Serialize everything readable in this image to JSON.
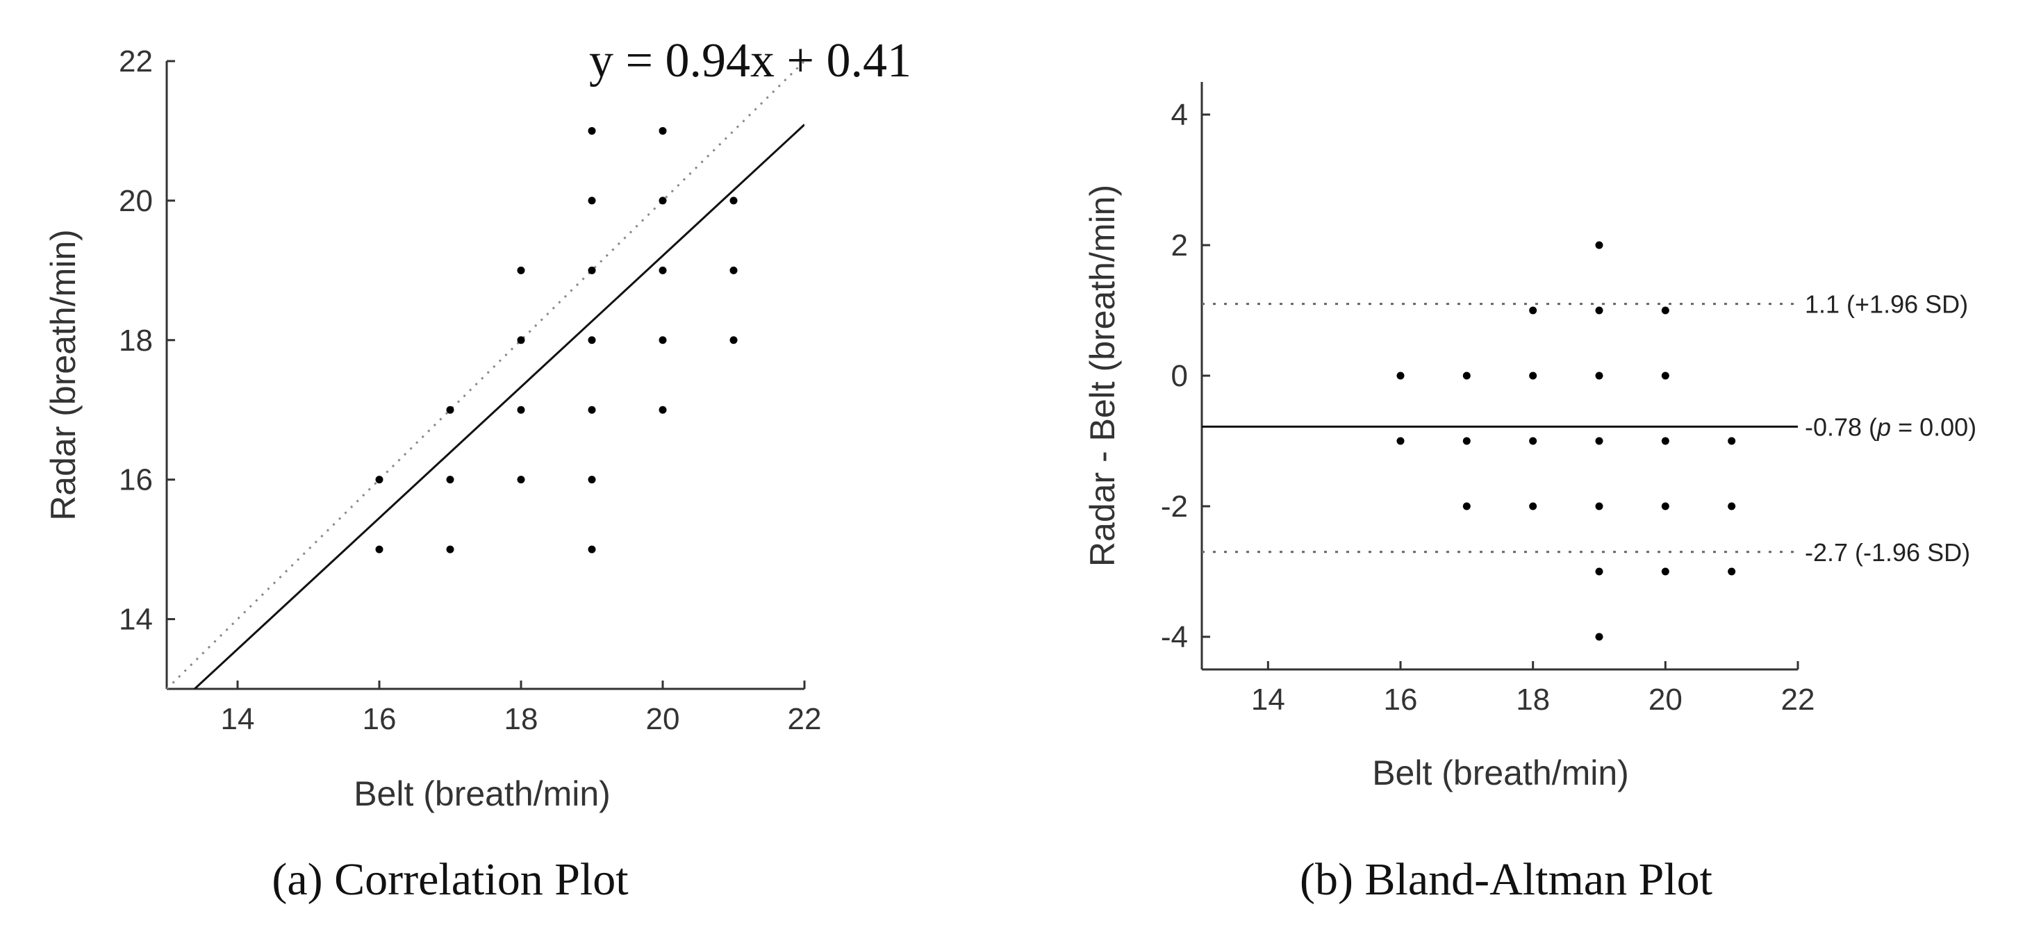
{
  "chart_data": [
    {
      "type": "scatter",
      "caption": "(a) Correlation Plot",
      "xlabel": "Belt (breath/min)",
      "ylabel": "Radar (breath/min)",
      "xlim": [
        13,
        22
      ],
      "ylim": [
        13,
        22
      ],
      "xticks": [
        "14",
        "16",
        "18",
        "20",
        "22"
      ],
      "yticks": [
        "14",
        "16",
        "18",
        "20",
        "22"
      ],
      "points": [
        [
          16,
          15
        ],
        [
          16,
          16
        ],
        [
          17,
          15
        ],
        [
          17,
          16
        ],
        [
          17,
          17
        ],
        [
          18,
          16
        ],
        [
          18,
          17
        ],
        [
          18,
          18
        ],
        [
          18,
          19
        ],
        [
          19,
          15
        ],
        [
          19,
          16
        ],
        [
          19,
          17
        ],
        [
          19,
          18
        ],
        [
          19,
          19
        ],
        [
          19,
          20
        ],
        [
          19,
          21
        ],
        [
          20,
          17
        ],
        [
          20,
          18
        ],
        [
          20,
          19
        ],
        [
          20,
          20
        ],
        [
          20,
          21
        ],
        [
          21,
          18
        ],
        [
          21,
          19
        ],
        [
          21,
          20
        ]
      ],
      "fit_line": {
        "equation": "y = 0.94x + 0.41",
        "slope": 0.94,
        "intercept": 0.41
      },
      "identity_line": {
        "slope": 1,
        "intercept": 0,
        "style": "dotted"
      },
      "grid": false
    },
    {
      "type": "scatter",
      "caption": "(b) Bland-Altman Plot",
      "xlabel": "Belt (breath/min)",
      "ylabel": "Radar - Belt (breath/min)",
      "xlim": [
        13,
        22
      ],
      "ylim": [
        -4.5,
        4.5
      ],
      "xticks": [
        "14",
        "16",
        "18",
        "20",
        "22"
      ],
      "yticks": [
        "4",
        "2",
        "0",
        "-2",
        "-4"
      ],
      "points": [
        [
          16,
          0
        ],
        [
          16,
          -1
        ],
        [
          17,
          0
        ],
        [
          17,
          -1
        ],
        [
          17,
          -2
        ],
        [
          18,
          1
        ],
        [
          18,
          0
        ],
        [
          18,
          -1
        ],
        [
          18,
          -2
        ],
        [
          19,
          2
        ],
        [
          19,
          1
        ],
        [
          19,
          0
        ],
        [
          19,
          -1
        ],
        [
          19,
          -2
        ],
        [
          19,
          -3
        ],
        [
          19,
          -4
        ],
        [
          20,
          1
        ],
        [
          20,
          0
        ],
        [
          20,
          -1
        ],
        [
          20,
          -2
        ],
        [
          20,
          -3
        ],
        [
          21,
          -1
        ],
        [
          21,
          -2
        ],
        [
          21,
          -3
        ]
      ],
      "mean_line": {
        "value": -0.78,
        "label": "-0.78 (",
        "p_symbol": "p",
        "p_value": " = 0.00)"
      },
      "upper_loa": {
        "value": 1.1,
        "label": "1.1 (+1.96 SD)"
      },
      "lower_loa": {
        "value": -2.7,
        "label": "-2.7 (-1.96 SD)"
      },
      "grid": false
    }
  ]
}
